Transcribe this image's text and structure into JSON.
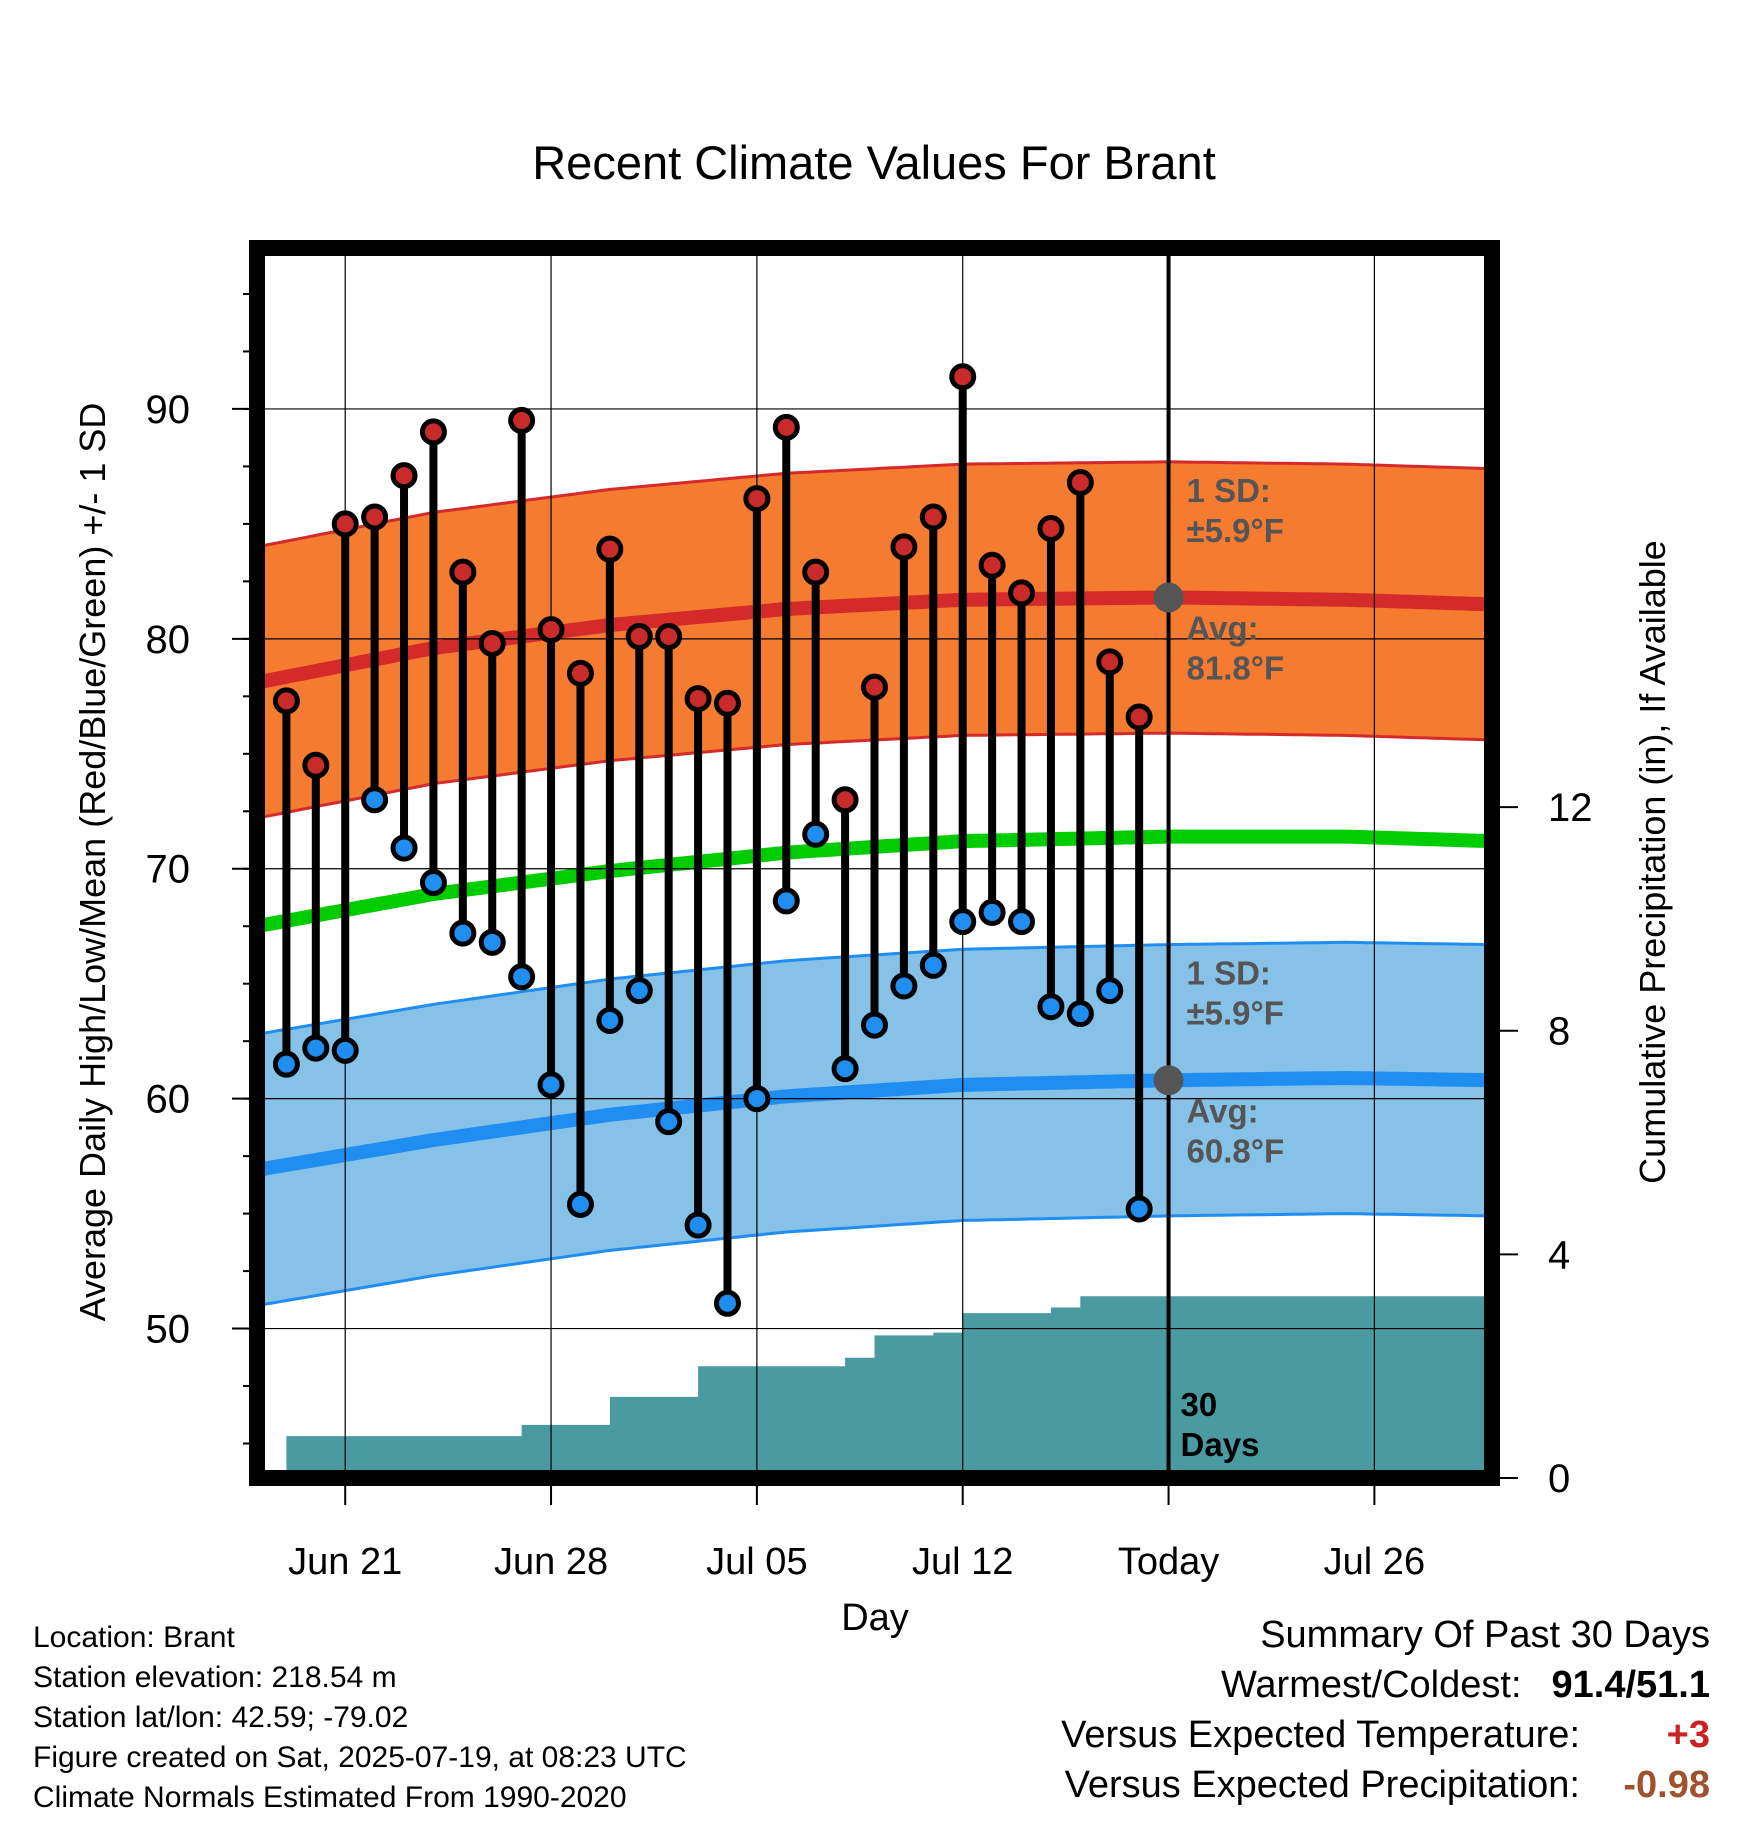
{
  "title": "Recent Climate Values For Brant",
  "chart_data": {
    "type": "line",
    "title": "Recent Climate Values For Brant",
    "xlabel": "Day",
    "ylabel": "Average Daily High/Low/Mean (Red/Blue/Green) +/- 1 SD",
    "y2label": "Cumulative Precipitation (in), If Available",
    "ylim": [
      43.5,
      97
    ],
    "y2lim": [
      0,
      22
    ],
    "yticks": [
      50,
      60,
      70,
      80,
      90
    ],
    "y2ticks": [
      0,
      4,
      8,
      12
    ],
    "xrange_days": [
      "2025-06-18",
      "2025-07-30"
    ],
    "xticks": [
      {
        "date": "2025-06-21",
        "label": "Jun 21"
      },
      {
        "date": "2025-06-28",
        "label": "Jun 28"
      },
      {
        "date": "2025-07-05",
        "label": "Jul 05"
      },
      {
        "date": "2025-07-12",
        "label": "Jul 12"
      },
      {
        "date": "2025-07-19",
        "label": "Today"
      },
      {
        "date": "2025-07-26",
        "label": "Jul 26"
      }
    ],
    "grid": true,
    "today": "2025-07-19",
    "days": [
      "2025-06-19",
      "2025-06-20",
      "2025-06-21",
      "2025-06-22",
      "2025-06-23",
      "2025-06-24",
      "2025-06-25",
      "2025-06-26",
      "2025-06-27",
      "2025-06-28",
      "2025-06-29",
      "2025-06-30",
      "2025-07-01",
      "2025-07-02",
      "2025-07-03",
      "2025-07-04",
      "2025-07-05",
      "2025-07-06",
      "2025-07-07",
      "2025-07-08",
      "2025-07-09",
      "2025-07-10",
      "2025-07-11",
      "2025-07-12",
      "2025-07-13",
      "2025-07-14",
      "2025-07-15",
      "2025-07-16",
      "2025-07-17",
      "2025-07-18"
    ],
    "highs": [
      77.3,
      74.5,
      85.0,
      85.3,
      87.1,
      89.0,
      82.9,
      79.8,
      89.5,
      80.4,
      78.5,
      83.9,
      80.1,
      80.1,
      77.4,
      77.2,
      86.1,
      89.2,
      82.9,
      73.0,
      77.9,
      84.0,
      85.3,
      91.4,
      83.2,
      82.0,
      84.8,
      86.8,
      79.0,
      76.6
    ],
    "lows": [
      61.5,
      62.2,
      62.1,
      73.0,
      70.9,
      69.4,
      67.2,
      66.8,
      65.3,
      60.6,
      55.4,
      63.4,
      64.7,
      59.0,
      54.5,
      51.1,
      60.0,
      68.6,
      71.5,
      61.3,
      63.2,
      64.9,
      65.8,
      67.7,
      68.1,
      67.7,
      64.0,
      63.7,
      64.7,
      55.2
    ],
    "normals": {
      "dates": [
        "2025-06-18",
        "2025-06-24",
        "2025-06-30",
        "2025-07-06",
        "2025-07-12",
        "2025-07-19",
        "2025-07-25",
        "2025-07-30"
      ],
      "high_avg": [
        78.1,
        79.6,
        80.6,
        81.3,
        81.7,
        81.8,
        81.7,
        81.5
      ],
      "low_avg": [
        56.9,
        58.2,
        59.3,
        60.1,
        60.6,
        60.8,
        60.9,
        60.8
      ],
      "mean_avg": [
        67.5,
        68.9,
        69.9,
        70.7,
        71.2,
        71.4,
        71.4,
        71.2
      ],
      "sd": 5.9
    },
    "precip": {
      "dates": [
        "2025-06-18",
        "2025-06-19",
        "2025-06-27",
        "2025-06-30",
        "2025-07-03",
        "2025-07-08",
        "2025-07-09",
        "2025-07-11",
        "2025-07-12",
        "2025-07-15",
        "2025-07-16",
        "2025-07-30"
      ],
      "cumulative": [
        0.0,
        0.75,
        0.95,
        1.45,
        2.0,
        2.15,
        2.55,
        2.6,
        2.95,
        3.05,
        3.25,
        3.3
      ]
    },
    "annotations": {
      "high_sd_label": "1 SD:",
      "high_sd_value": "±5.9°F",
      "high_avg_label": "Avg:",
      "high_avg_value": "81.8°F",
      "low_sd_label": "1 SD:",
      "low_sd_value": "±5.9°F",
      "low_avg_label": "Avg:",
      "low_avg_value": "60.8°F",
      "days_label_1": "30",
      "days_label_2": "Days"
    },
    "colors": {
      "high_band": "#f47b2f",
      "high_line": "#d42a2a",
      "low_band": "#86c1e8",
      "low_line": "#1f8ef0",
      "mean_line": "#00cc00",
      "precip": "#4a9aa2",
      "high_dot": "#c92a2a",
      "low_dot": "#1f8ef0",
      "today_marker": "#555555"
    }
  },
  "meta": {
    "location": "Location: Brant",
    "elevation": "Station elevation: 218.54 m",
    "latlon": "Station lat/lon: 42.59; -79.02",
    "created": "Figure created on Sat, 2025-07-19, at 08:23 UTC",
    "normals": "Climate Normals Estimated From 1990-2020"
  },
  "summary": {
    "heading": "Summary Of Past 30 Days",
    "warm_cold_label": "Warmest/Coldest:",
    "warm_cold_value": "91.4/51.1",
    "temp_label": "Versus Expected Temperature:",
    "temp_value": "+3",
    "temp_color": "#cc2222",
    "precip_label": "Versus Expected Precipitation:",
    "precip_value": "-0.98",
    "precip_color": "#a0522d"
  }
}
